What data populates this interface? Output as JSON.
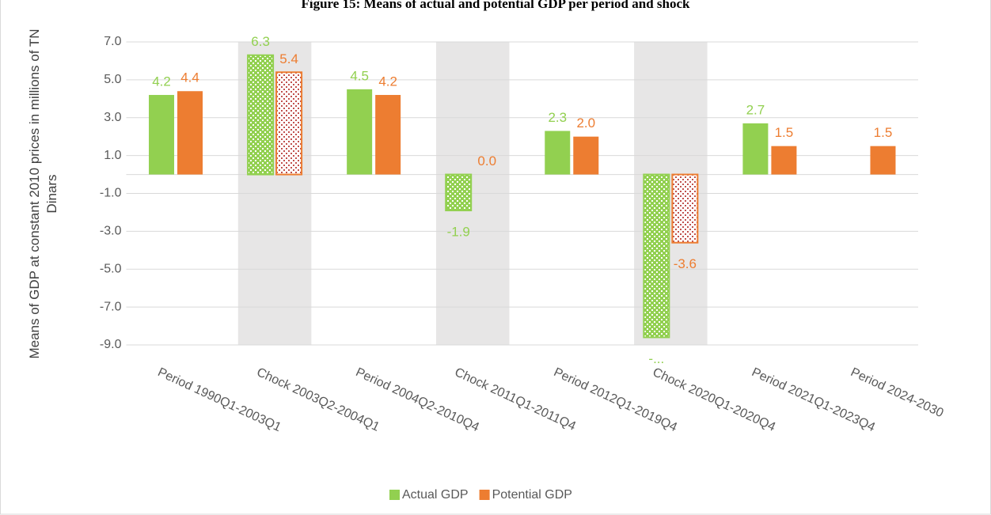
{
  "chart_data": {
    "type": "bar",
    "title": "Figure 15: Means of actual and potential GDP per period and shock",
    "y_label": "Means of GDP at constant 2010 prices in millions of TN Dinars",
    "categories": [
      "Period 1990Q1-2003Q1",
      "Chock 2003Q2-2004Q1",
      "Period 2004Q2-2010Q4",
      "Chock 2011Q1-2011Q4",
      "Period 2012Q1-2019Q4",
      "Chock 2020Q1-2020Q4",
      "Period 2021Q1-2023Q4",
      "Period 2024-2030"
    ],
    "shaded_categories": [
      1,
      3,
      5
    ],
    "series": [
      {
        "name": "Actual GDP",
        "color": "#92d050",
        "values": [
          4.2,
          6.3,
          4.5,
          -1.9,
          2.3,
          -8.6,
          2.7,
          null
        ],
        "value_labels": [
          "4.2",
          "6.3",
          "4.5",
          "-1.9",
          "2.3",
          "-...",
          "2.7",
          null
        ]
      },
      {
        "name": "Potential GDP",
        "color": "#ed7d31",
        "values": [
          4.4,
          5.4,
          4.2,
          0,
          2.0,
          -3.6,
          1.5,
          1.5
        ],
        "value_labels": [
          "4.4",
          "5.4",
          "4.2",
          "0.0",
          "2.0",
          "-3.6",
          "1.5",
          "1.5"
        ]
      }
    ],
    "ylim": [
      -9,
      7
    ],
    "yticks": [
      {
        "value": -9,
        "label": "-9.0"
      },
      {
        "value": -7,
        "label": "-7.0"
      },
      {
        "value": -5,
        "label": "-5.0"
      },
      {
        "value": -3,
        "label": "-3.0"
      },
      {
        "value": -1,
        "label": "-1.0"
      },
      {
        "value": 1,
        "label": "1.0"
      },
      {
        "value": 3,
        "label": "3.0"
      },
      {
        "value": 5,
        "label": "5.0"
      },
      {
        "value": 7,
        "label": "7.0"
      }
    ],
    "grid": true,
    "legend": "bottom"
  }
}
